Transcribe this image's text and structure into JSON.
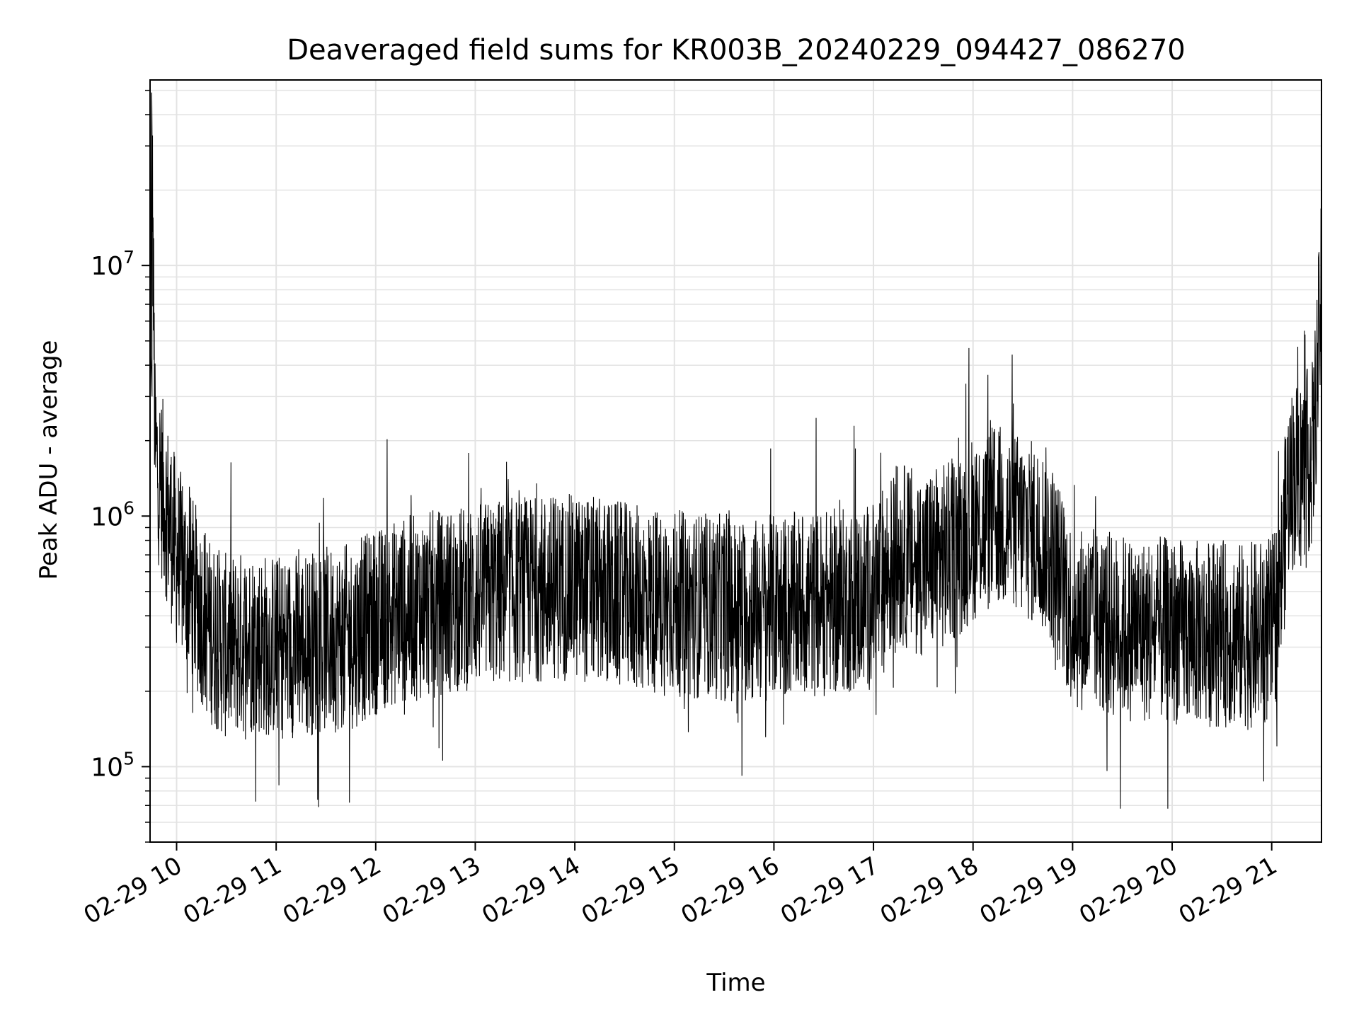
{
  "chart_data": {
    "type": "line",
    "title": "Deaveraged field sums for KR003B_20240229_094427_086270",
    "xlabel": "Time",
    "ylabel": "Peak ADU - average",
    "y_scale": "log",
    "ylim": [
      50000,
      55000000
    ],
    "xlim": [
      "2024-02-29 09:44",
      "2024-02-29 21:30"
    ],
    "grid": true,
    "legend": "none",
    "line_color": "#000000",
    "x_ticks": [
      {
        "value": "2024-02-29 10:00",
        "label": "02-29 10"
      },
      {
        "value": "2024-02-29 11:00",
        "label": "02-29 11"
      },
      {
        "value": "2024-02-29 12:00",
        "label": "02-29 12"
      },
      {
        "value": "2024-02-29 13:00",
        "label": "02-29 13"
      },
      {
        "value": "2024-02-29 14:00",
        "label": "02-29 14"
      },
      {
        "value": "2024-02-29 15:00",
        "label": "02-29 15"
      },
      {
        "value": "2024-02-29 16:00",
        "label": "02-29 16"
      },
      {
        "value": "2024-02-29 17:00",
        "label": "02-29 17"
      },
      {
        "value": "2024-02-29 18:00",
        "label": "02-29 18"
      },
      {
        "value": "2024-02-29 19:00",
        "label": "02-29 19"
      },
      {
        "value": "2024-02-29 20:00",
        "label": "02-29 20"
      },
      {
        "value": "2024-02-29 21:00",
        "label": "02-29 21"
      }
    ],
    "y_ticks": [
      {
        "value": 100000,
        "base": "10",
        "exp": "5"
      },
      {
        "value": 1000000,
        "base": "10",
        "exp": "6"
      },
      {
        "value": 10000000,
        "base": "10",
        "exp": "7"
      }
    ],
    "series": [
      {
        "x": [
          "2024-02-29 09:44",
          "2024-02-29 09:45",
          "2024-02-29 09:47",
          "2024-02-29 09:50",
          "2024-02-29 09:55",
          "2024-02-29 10:00",
          "2024-02-29 10:10",
          "2024-02-29 10:20",
          "2024-02-29 10:30",
          "2024-02-29 10:45",
          "2024-02-29 11:00",
          "2024-02-29 11:15",
          "2024-02-29 11:30",
          "2024-02-29 11:45",
          "2024-02-29 12:00",
          "2024-02-29 12:15",
          "2024-02-29 12:30",
          "2024-02-29 12:45",
          "2024-02-29 13:00",
          "2024-02-29 13:15",
          "2024-02-29 13:30",
          "2024-02-29 13:45",
          "2024-02-29 14:00",
          "2024-02-29 14:15",
          "2024-02-29 14:30",
          "2024-02-29 14:45",
          "2024-02-29 15:00",
          "2024-02-29 15:15",
          "2024-02-29 15:30",
          "2024-02-29 15:45",
          "2024-02-29 16:00",
          "2024-02-29 16:15",
          "2024-02-29 16:30",
          "2024-02-29 16:45",
          "2024-02-29 17:00",
          "2024-02-29 17:15",
          "2024-02-29 17:30",
          "2024-02-29 17:45",
          "2024-02-29 18:00",
          "2024-02-29 18:15",
          "2024-02-29 18:30",
          "2024-02-29 18:45",
          "2024-02-29 19:00",
          "2024-02-29 19:15",
          "2024-02-29 19:30",
          "2024-02-29 19:45",
          "2024-02-29 20:00",
          "2024-02-29 20:15",
          "2024-02-29 20:30",
          "2024-02-29 20:45",
          "2024-02-29 21:00",
          "2024-02-29 21:05",
          "2024-02-29 21:10",
          "2024-02-29 21:15",
          "2024-02-29 21:20",
          "2024-02-29 21:25",
          "2024-02-29 21:30"
        ],
        "values": [
          1500000,
          38000000,
          1800000,
          1400000,
          1000000,
          700000,
          500000,
          350000,
          300000,
          320000,
          300000,
          310000,
          320000,
          330000,
          380000,
          420000,
          440000,
          460000,
          480000,
          500000,
          510000,
          520000,
          520000,
          500000,
          480000,
          460000,
          450000,
          440000,
          430000,
          420000,
          430000,
          440000,
          450000,
          460000,
          480000,
          700000,
          650000,
          700000,
          900000,
          1000000,
          900000,
          800000,
          400000,
          380000,
          360000,
          350000,
          350000,
          340000,
          340000,
          330000,
          350000,
          500000,
          1300000,
          1500000,
          1600000,
          1800000,
          8000000
        ]
      }
    ]
  }
}
